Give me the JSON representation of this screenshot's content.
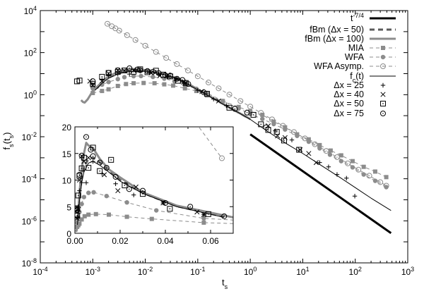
{
  "chart_data": [
    {
      "type": "line",
      "xlabel": "t",
      "xlabel_sub": "s",
      "ylabel": "f",
      "ylabel_sub": "s",
      "ylabel_after": "(t",
      "ylabel_sub2": "s",
      "ylabel_end": ")",
      "xscale": "log",
      "yscale": "log",
      "xlim": [
        0.0001,
        1000
      ],
      "ylim": [
        1e-08,
        10000
      ],
      "xtick_exponents": [
        -4,
        -3,
        -2,
        -1,
        0,
        1,
        2,
        3
      ],
      "ytick_exponents": [
        -8,
        -6,
        -4,
        -2,
        0,
        2,
        4
      ],
      "tick_base": "10",
      "grid": false,
      "legend_position": "top-right",
      "colors": {
        "black": "#000000",
        "gray": "#8c8c8c",
        "darkgray": "#5a5a5a"
      },
      "series": [
        {
          "name": "t",
          "name_sup": "-7/4",
          "style": "thick-black-solid",
          "x": [
            1,
            480
          ],
          "y": [
            0.013,
            2.6e-07
          ]
        },
        {
          "name": "fBm (Δx = 50)",
          "style": "thick-darkgray-dashed",
          "x": [
            0.0012,
            0.0015,
            0.002,
            0.003,
            0.004,
            0.006,
            0.008,
            0.011,
            0.015,
            0.02,
            0.03,
            0.045,
            0.066,
            0.1,
            0.2,
            0.5,
            1
          ],
          "y": [
            2,
            4,
            7,
            10.5,
            12.5,
            14,
            14.2,
            13.3,
            11.8,
            10,
            7.6,
            5.1,
            3.1,
            1.75,
            0.65,
            0.18,
            0.068
          ]
        },
        {
          "name": "fBm (Δx = 100)",
          "style": "thick-gray-solid",
          "x": [
            0.0006,
            0.00065,
            0.0007,
            0.0008,
            0.001,
            0.0015,
            0.002,
            0.003,
            0.004,
            0.005,
            0.006,
            0.008,
            0.011,
            0.015,
            0.02,
            0.03,
            0.045,
            0.07,
            0.1,
            0.2,
            0.5,
            1
          ],
          "y": [
            0.55,
            0.45,
            0.42,
            0.6,
            1.5,
            4,
            7.5,
            12,
            15,
            17,
            16.5,
            16,
            14,
            12,
            10.5,
            7.7,
            5.2,
            3,
            1.8,
            0.66,
            0.18,
            0.07
          ]
        },
        {
          "name": "MIA",
          "style": "gray-dashed-filled-square",
          "x": [
            0.001,
            0.0015,
            0.002,
            0.003,
            0.0043,
            0.006,
            0.0093,
            0.015,
            0.023,
            0.034,
            0.057,
            0.094,
            0.15,
            0.3,
            0.6,
            1.0,
            1.7,
            2.8,
            4.6,
            7.8,
            13,
            21,
            34,
            54,
            89,
            145,
            240,
            390
          ],
          "y": [
            1.2,
            1.5,
            1.8,
            2.6,
            3.2,
            3.5,
            3.6,
            3.5,
            3.1,
            2.7,
            2.0,
            1.5,
            0.93,
            0.5,
            0.26,
            0.16,
            0.11,
            0.052,
            0.028,
            0.013,
            0.0075,
            0.004,
            0.0022,
            0.0013,
            0.00069,
            0.00037,
            0.00022,
            0.00012
          ]
        },
        {
          "name": "WFA",
          "style": "gray-dashed-filled-circle",
          "x": [
            0.001,
            0.0015,
            0.002,
            0.003,
            0.004,
            0.006,
            0.0083,
            0.014,
            0.023,
            0.036,
            0.057,
            0.094,
            0.15,
            0.3,
            0.6,
            1,
            1.7,
            2.8,
            4.6,
            7.8,
            13,
            21,
            33,
            54,
            89,
            145,
            240,
            390
          ],
          "y": [
            2,
            3,
            4,
            5.5,
            6.8,
            7.6,
            7.7,
            7,
            5.8,
            4.3,
            2.8,
            1.9,
            1.2,
            0.5,
            0.22,
            0.12,
            0.07,
            0.04,
            0.022,
            0.011,
            0.0058,
            0.0028,
            0.0014,
            0.00069,
            0.00035,
            0.00016,
            8e-05,
            4e-05
          ]
        },
        {
          "name": "WFA Asymp.",
          "style": "gray-dashed-open-circle",
          "x": [
            0.0019,
            0.0023,
            0.0027,
            0.0032,
            0.0045,
            0.0065,
            0.01,
            0.016,
            0.025,
            0.04,
            0.065,
            0.1,
            0.16,
            0.25,
            0.4,
            0.65,
            1,
            1.6,
            2.6,
            4.2,
            6.8,
            11,
            17,
            28,
            45,
            72,
            115,
            185,
            300,
            390
          ],
          "y": [
            2360,
            1790,
            1420,
            1110,
            678,
            397,
            213,
            108,
            56,
            28.5,
            14.1,
            7.5,
            3.8,
            2.0,
            1.01,
            0.5,
            0.27,
            0.136,
            0.067,
            0.033,
            0.0166,
            0.0083,
            0.0044,
            0.0021,
            0.00107,
            0.00054,
            0.00027,
            0.00014,
            6.9e-05,
            4.7e-05
          ]
        },
        {
          "name": "f",
          "name_sub": "c",
          "name_after": "(t)",
          "style": "thin-black-solid",
          "x": [
            0.0011,
            0.0015,
            0.002,
            0.003,
            0.004,
            0.006,
            0.008,
            0.011,
            0.015,
            0.02,
            0.03,
            0.045,
            0.066,
            0.1,
            0.2,
            0.3,
            0.5,
            1,
            2,
            5,
            10,
            20,
            50,
            100,
            200,
            480
          ],
          "y": [
            1.6,
            3.5,
            6,
            9.5,
            11.5,
            13.2,
            13.5,
            12.8,
            11.5,
            9.8,
            7.5,
            5,
            3,
            1.7,
            0.64,
            0.36,
            0.18,
            0.067,
            0.02,
            0.0045,
            0.0016,
            0.00052,
            0.00012,
            3.8e-05,
            1.2e-05,
            3.1e-06
          ]
        },
        {
          "name": "Δx = 25",
          "style": "plus",
          "x": [
            0.001,
            0.0015,
            0.002,
            0.003,
            0.005,
            0.008,
            0.012,
            0.018,
            0.026,
            0.039,
            0.057,
            0.1,
            0.2,
            0.35,
            3,
            6.2,
            21,
            31,
            45,
            68,
            98
          ],
          "y": [
            3,
            5,
            8,
            9.5,
            9.5,
            13.5,
            11.2,
            9.3,
            7.2,
            5.7,
            3.5,
            1.6,
            0.62,
            0.3,
            0.019,
            0.007,
            0.00059,
            0.00037,
            0.00016,
            0.000107,
            1.5e-05
          ]
        },
        {
          "name": "Δx = 40",
          "style": "cross",
          "x": [
            0.00088,
            0.001,
            0.0015,
            0.002,
            0.003,
            0.004,
            0.006,
            0.013,
            0.019,
            0.027,
            0.039,
            0.054,
            0.057,
            0.12,
            0.25,
            2.2,
            3.3,
            4.6,
            8.9,
            13,
            18
          ],
          "y": [
            4.4,
            2.8,
            4.5,
            10,
            14.5,
            13.5,
            14.2,
            11,
            8,
            8.7,
            5.7,
            4,
            3.5,
            1.4,
            0.5,
            0.033,
            0.011,
            0.009,
            0.0024,
            0.0016,
            0.00059
          ]
        },
        {
          "name": "Δx = 50",
          "style": "square-dot",
          "x": [
            0.0005,
            0.00056,
            0.001,
            0.0015,
            0.002,
            0.003,
            0.004,
            0.006,
            0.008,
            0.011,
            0.016,
            0.022,
            0.03,
            0.042,
            0.059,
            0.15,
            0.4,
            1.15,
            1.6,
            2.2,
            3.2,
            4.4,
            8.5
          ],
          "y": [
            4.3,
            4.7,
            3.3,
            7.1,
            10.8,
            12.2,
            14.2,
            12.3,
            16.1,
            11.7,
            13.8,
            9,
            7.4,
            4.6,
            3.6,
            1.1,
            0.24,
            0.11,
            0.039,
            0.021,
            0.017,
            0.0066,
            0.0024
          ]
        },
        {
          "name": "Δx = 75",
          "style": "circle-dot",
          "x": [
            0.001,
            0.002,
            0.003,
            0.005,
            0.007,
            0.008,
            0.011,
            0.014,
            0.018,
            0.024,
            0.03,
            0.04,
            0.051,
            0.066,
            0.13,
            0.51,
            0.87,
            2.0
          ],
          "y": [
            4.4,
            11,
            14.6,
            18.1,
            15.7,
            14.5,
            13.3,
            12.3,
            10.6,
            8.3,
            8,
            5.7,
            5,
            3.2,
            1.3,
            0.21,
            0.14,
            0.028
          ]
        }
      ]
    },
    {
      "type": "line",
      "inset": true,
      "xscale": "linear",
      "yscale": "linear",
      "xlim": [
        0,
        0.07
      ],
      "ylim": [
        0,
        20
      ],
      "xticks": [
        "0.00",
        "0.02",
        "0.04",
        "0.06"
      ],
      "xtick_values": [
        0,
        0.02,
        0.04,
        0.06
      ],
      "yticks": [
        "0",
        "5",
        "10",
        "15",
        "20"
      ],
      "ytick_values": [
        0,
        5,
        10,
        15,
        20
      ],
      "series_source": "same series as main plot"
    }
  ]
}
